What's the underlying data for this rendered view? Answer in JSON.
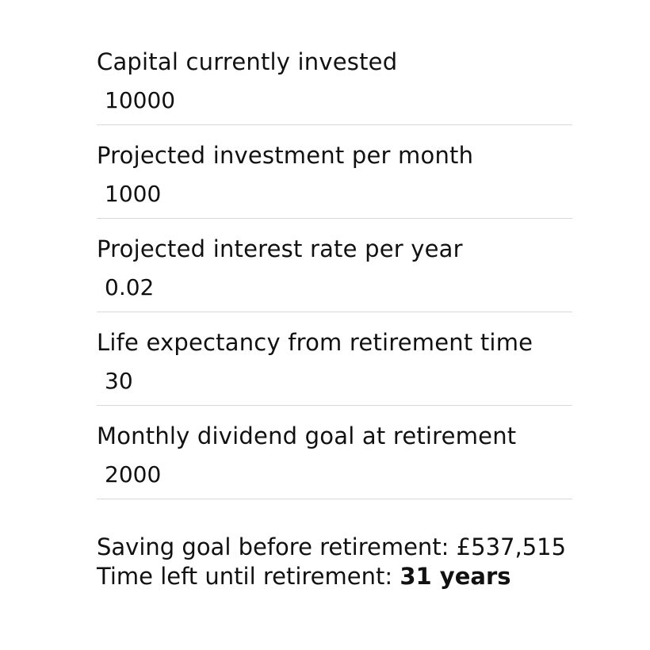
{
  "form": {
    "fields": [
      {
        "label": "Capital currently invested",
        "value": "10000"
      },
      {
        "label": "Projected investment per month",
        "value": "1000"
      },
      {
        "label": "Projected interest rate per year",
        "value": "0.02"
      },
      {
        "label": "Life expectancy from retirement time",
        "value": "30"
      },
      {
        "label": "Monthly dividend goal at retirement",
        "value": "2000"
      }
    ]
  },
  "results": {
    "saving_goal_label": "Saving goal before retirement: ",
    "saving_goal_value": "£537,515",
    "time_left_label": "Time left until retirement: ",
    "time_left_value": "31 years"
  }
}
